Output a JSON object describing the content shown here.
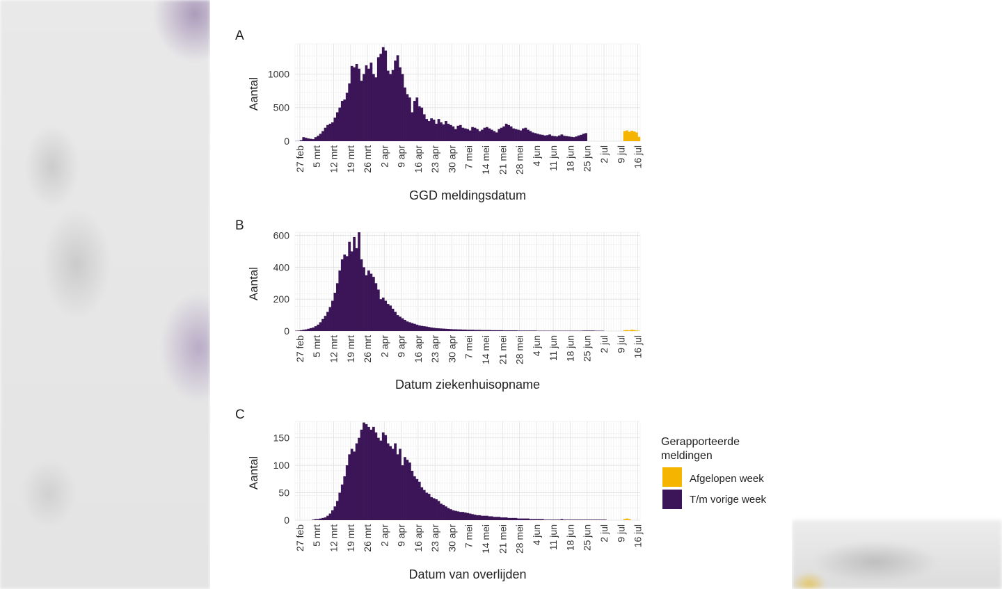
{
  "palette": {
    "afgelopen": "#f5b400",
    "vorige": "#3b1557",
    "grid": "#e4e4e4",
    "text": "#222222"
  },
  "chart_data": [
    {
      "panel": "A",
      "type": "bar",
      "xlabel": "GGD meldingsdatum",
      "ylabel": "Aantal",
      "ylim": [
        0,
        1450
      ],
      "yticks": [
        "0",
        "500",
        "1000"
      ],
      "ytick_values": [
        0,
        500,
        1000
      ],
      "xticks": [
        "27 feb",
        "5 mrt",
        "12 mrt",
        "19 mrt",
        "26 mrt",
        "2 apr",
        "9 apr",
        "16 apr",
        "23 apr",
        "30 apr",
        "7 mei",
        "14 mei",
        "21 mei",
        "28 mei",
        "4 jun",
        "11 jun",
        "18 jun",
        "25 jun",
        "2 jul",
        "9 jul",
        "16 jul"
      ],
      "series": [
        {
          "name": "T/m vorige week",
          "start_day": 0,
          "values": [
            2,
            3,
            15,
            60,
            50,
            40,
            35,
            30,
            60,
            80,
            110,
            150,
            200,
            240,
            260,
            280,
            350,
            430,
            500,
            600,
            620,
            720,
            860,
            1120,
            1100,
            1150,
            1080,
            900,
            1000,
            1130,
            1080,
            1170,
            1000,
            950,
            1250,
            1300,
            1400,
            1350,
            1050,
            1000,
            1060,
            1200,
            1280,
            1100,
            1000,
            800,
            700,
            650,
            430,
            600,
            650,
            520,
            500,
            400,
            330,
            300,
            340,
            320,
            260,
            330,
            280,
            250,
            300,
            260,
            240,
            220,
            180,
            230,
            240,
            200,
            190,
            180,
            160,
            210,
            200,
            180,
            150,
            170,
            200,
            210,
            190,
            170,
            150,
            130,
            180,
            200,
            220,
            260,
            240,
            220,
            190,
            180,
            170,
            160,
            190,
            200,
            170,
            150,
            130,
            120,
            110,
            100,
            95,
            85,
            90,
            100,
            80,
            75,
            70,
            85,
            100,
            80,
            75,
            70,
            65,
            60,
            70,
            85,
            95,
            110,
            120
          ]
        },
        {
          "name": "Afgelopen week",
          "start_day": 136,
          "values": [
            150,
            160,
            140,
            155,
            145,
            130,
            65
          ]
        }
      ]
    },
    {
      "panel": "B",
      "type": "bar",
      "xlabel": "Datum ziekenhuisopname",
      "ylabel": "Aantal",
      "ylim": [
        0,
        620
      ],
      "yticks": [
        "0",
        "200",
        "400",
        "600"
      ],
      "ytick_values": [
        0,
        200,
        400,
        600
      ],
      "xticks": [
        "27 feb",
        "5 mrt",
        "12 mrt",
        "19 mrt",
        "26 mrt",
        "2 apr",
        "9 apr",
        "16 apr",
        "23 apr",
        "30 apr",
        "7 mei",
        "14 mei",
        "21 mei",
        "28 mei",
        "4 jun",
        "11 jun",
        "18 jun",
        "25 jun",
        "2 jul",
        "9 jul",
        "16 jul"
      ],
      "series": [
        {
          "name": "T/m vorige week",
          "start_day": 0,
          "values": [
            2,
            3,
            5,
            8,
            10,
            14,
            18,
            22,
            30,
            40,
            55,
            75,
            95,
            120,
            150,
            190,
            240,
            300,
            380,
            450,
            480,
            470,
            560,
            500,
            590,
            520,
            620,
            450,
            400,
            350,
            380,
            360,
            340,
            300,
            260,
            200,
            210,
            190,
            170,
            160,
            140,
            120,
            100,
            90,
            80,
            70,
            60,
            55,
            50,
            45,
            40,
            35,
            32,
            30,
            28,
            25,
            22,
            20,
            18,
            17,
            16,
            15,
            14,
            13,
            12,
            11,
            11,
            10,
            10,
            9,
            9,
            8,
            8,
            8,
            7,
            7,
            7,
            6,
            6,
            6,
            6,
            5,
            5,
            5,
            5,
            5,
            4,
            4,
            4,
            4,
            4,
            4,
            3,
            3,
            3,
            3,
            3,
            3,
            3,
            3,
            2,
            2,
            2,
            2,
            2,
            2,
            2,
            2,
            2,
            2,
            2,
            2,
            2,
            2,
            2,
            2,
            2,
            2,
            2,
            3,
            3,
            3,
            3,
            3,
            2,
            2,
            2,
            2
          ]
        },
        {
          "name": "Afgelopen week",
          "start_day": 136,
          "values": [
            5,
            6,
            4,
            8,
            6,
            3,
            2
          ]
        }
      ]
    },
    {
      "panel": "C",
      "type": "bar",
      "xlabel": "Datum van overlijden",
      "ylabel": "Aantal",
      "ylim": [
        0,
        180
      ],
      "yticks": [
        "0",
        "50",
        "100",
        "150"
      ],
      "ytick_values": [
        0,
        50,
        100,
        150
      ],
      "xticks": [
        "27 feb",
        "5 mrt",
        "12 mrt",
        "19 mrt",
        "26 mrt",
        "2 apr",
        "9 apr",
        "16 apr",
        "23 apr",
        "30 apr",
        "7 mei",
        "14 mei",
        "21 mei",
        "28 mei",
        "4 jun",
        "11 jun",
        "18 jun",
        "25 jun",
        "2 jul",
        "9 jul",
        "16 jul"
      ],
      "series": [
        {
          "name": "T/m vorige week",
          "start_day": 0,
          "values": [
            0,
            0,
            0,
            0,
            0,
            0,
            0,
            1,
            2,
            2,
            3,
            4,
            5,
            8,
            12,
            18,
            25,
            35,
            50,
            65,
            80,
            100,
            120,
            130,
            125,
            140,
            150,
            165,
            178,
            175,
            170,
            165,
            170,
            160,
            150,
            145,
            160,
            155,
            140,
            135,
            130,
            140,
            120,
            130,
            100,
            115,
            110,
            105,
            90,
            80,
            75,
            70,
            60,
            55,
            50,
            48,
            42,
            40,
            38,
            35,
            30,
            28,
            25,
            22,
            20,
            18,
            17,
            16,
            15,
            15,
            14,
            13,
            12,
            11,
            10,
            9,
            9,
            8,
            8,
            8,
            7,
            7,
            6,
            6,
            6,
            5,
            5,
            5,
            4,
            4,
            4,
            4,
            3,
            3,
            3,
            3,
            3,
            2,
            2,
            2,
            2,
            2,
            2,
            1,
            1,
            1,
            1,
            1,
            1,
            1,
            2,
            1,
            1,
            1,
            1,
            1,
            1,
            1,
            1,
            1,
            1,
            1,
            1,
            1,
            1,
            1,
            1,
            1,
            1
          ]
        },
        {
          "name": "Afgelopen week",
          "start_day": 136,
          "values": [
            2,
            3,
            2
          ]
        }
      ]
    }
  ],
  "legend": {
    "title_line1": "Gerapporteerde",
    "title_line2": "meldingen",
    "items": [
      {
        "label": "Afgelopen week",
        "key": "afgelopen"
      },
      {
        "label": "T/m vorige week",
        "key": "vorige"
      }
    ]
  }
}
